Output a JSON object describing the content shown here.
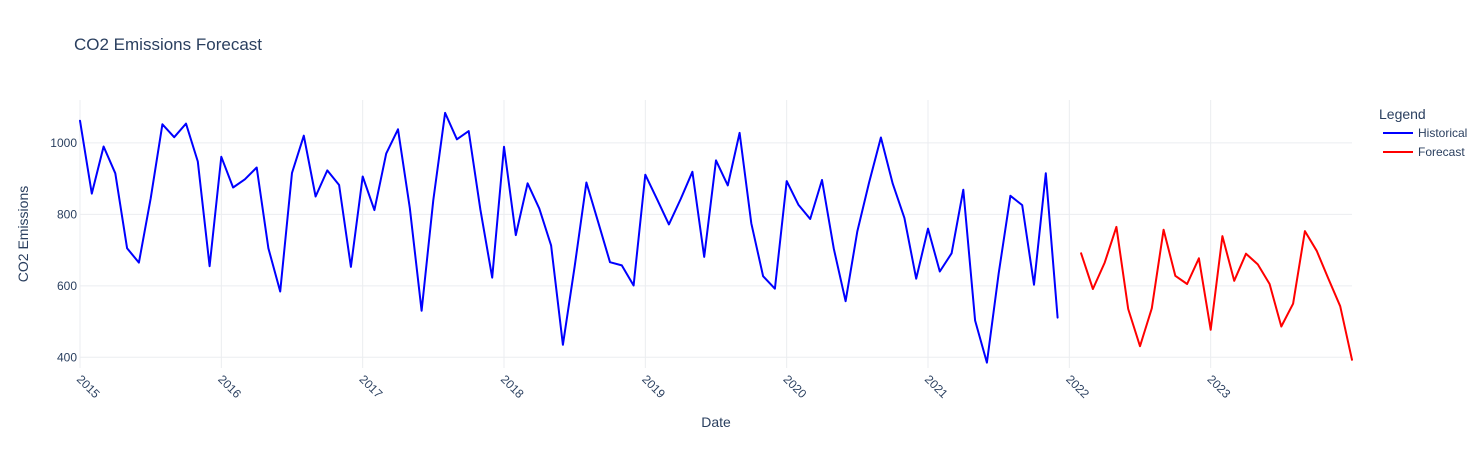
{
  "chart_data": {
    "type": "line",
    "title": "CO2 Emissions Forecast",
    "xlabel": "Date",
    "ylabel": "CO2 Emissions",
    "ylim": [
      370,
      1120
    ],
    "xlim": [
      "2015-01",
      "2024-01"
    ],
    "x_ticks": [
      "2015",
      "2016",
      "2017",
      "2018",
      "2019",
      "2020",
      "2021",
      "2022",
      "2023"
    ],
    "y_ticks": [
      400,
      600,
      800,
      1000
    ],
    "grid": true,
    "legend": {
      "title": "Legend",
      "position": "top-right"
    },
    "series": [
      {
        "name": "Historical",
        "color": "#0000ff",
        "start": "2015-01",
        "values": [
          1062,
          858,
          990,
          915,
          705,
          665,
          845,
          1052,
          1016,
          1054,
          948,
          655,
          961,
          875,
          898,
          931,
          705,
          584,
          916,
          1020,
          850,
          923,
          882,
          653,
          906,
          812,
          970,
          1038,
          818,
          530,
          840,
          1084,
          1010,
          1033,
          813,
          623,
          989,
          742,
          887,
          816,
          713,
          435,
          655,
          889,
          778,
          666,
          657,
          601,
          911,
          842,
          772,
          843,
          919,
          681,
          951,
          881,
          1028,
          775,
          627,
          592,
          893,
          827,
          787,
          896,
          704,
          557,
          752,
          889,
          1015,
          886,
          790,
          620,
          760,
          640,
          691,
          869,
          503,
          385,
          635,
          852,
          826,
          603,
          915,
          511
        ]
      },
      {
        "name": "Forecast",
        "color": "#ff0000",
        "start": "2022-02",
        "values": [
          691,
          591,
          665,
          765,
          535,
          431,
          537,
          757,
          628,
          605,
          677,
          477,
          739,
          614,
          690,
          660,
          605,
          486,
          550,
          753,
          698,
          620,
          543,
          393
        ]
      }
    ]
  }
}
